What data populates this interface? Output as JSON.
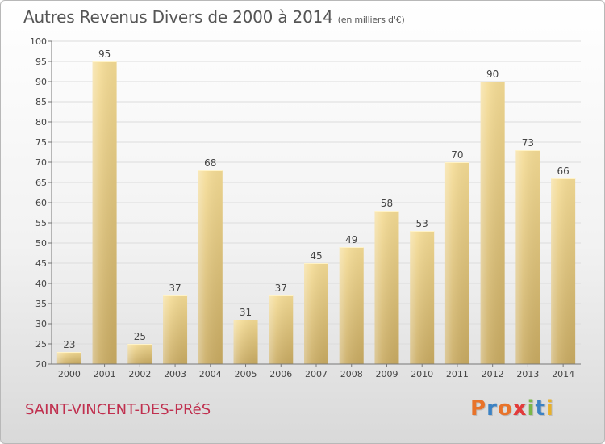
{
  "title": "Autres Revenus Divers de 2000 à 2014",
  "unit_note": "(en milliers d'€)",
  "place": "SAINT-VINCENT-DES-PRéS",
  "logo": {
    "text": "Proxiti",
    "colors": [
      "#e8732a",
      "#3b82c4",
      "#e8732a",
      "#e23b3b",
      "#7ab648",
      "#3b82c4",
      "#e8b02a"
    ]
  },
  "chart_data": {
    "type": "bar",
    "categories": [
      "2000",
      "2001",
      "2002",
      "2003",
      "2004",
      "2005",
      "2006",
      "2007",
      "2008",
      "2009",
      "2010",
      "2011",
      "2012",
      "2013",
      "2014"
    ],
    "values": [
      23,
      95,
      25,
      37,
      68,
      31,
      37,
      45,
      49,
      58,
      53,
      70,
      90,
      73,
      66
    ],
    "ylim": [
      20,
      100
    ],
    "yticks": [
      20,
      25,
      30,
      35,
      40,
      45,
      50,
      55,
      60,
      65,
      70,
      75,
      80,
      85,
      90,
      95,
      100
    ],
    "grid": true,
    "bar_color_top": "#f5dc95",
    "bar_color_bottom": "#c9ab62"
  }
}
